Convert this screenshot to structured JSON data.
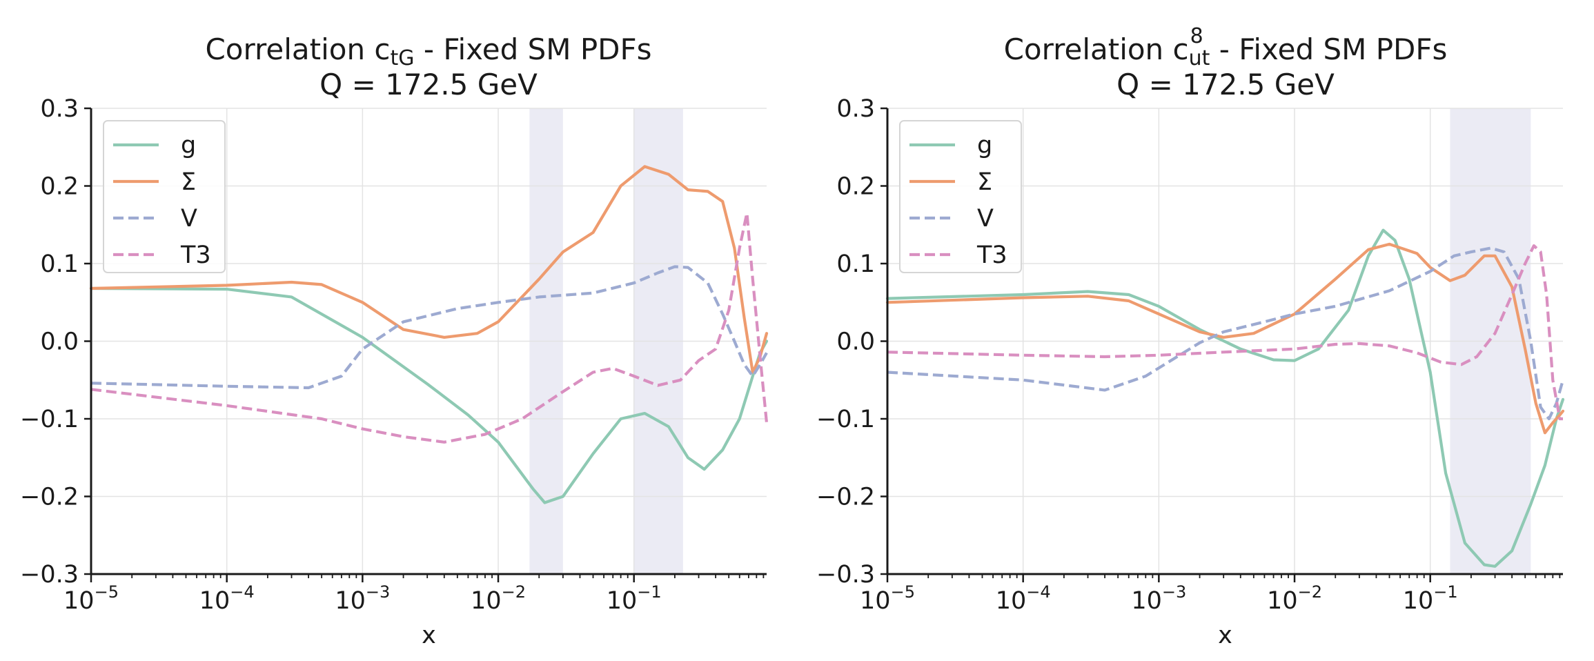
{
  "chart_data": [
    {
      "type": "line",
      "title_line1_pre": "Correlation c",
      "title_sub": "tG",
      "title_sup": "",
      "title_line1_post": " - Fixed SM PDFs",
      "title_line2": "Q = 172.5 GeV",
      "xlabel": "x",
      "xscale": "log",
      "xlim": [
        1e-05,
        0.95
      ],
      "ylim": [
        -0.3,
        0.3
      ],
      "xticks": [
        {
          "base": "10",
          "exp": "−5"
        },
        {
          "base": "10",
          "exp": "−4"
        },
        {
          "base": "10",
          "exp": "−3"
        },
        {
          "base": "10",
          "exp": "−2"
        },
        {
          "base": "10",
          "exp": "−1"
        }
      ],
      "yticks": [
        "0.3",
        "0.2",
        "0.1",
        "0.0",
        "−0.1",
        "−0.2",
        "−0.3"
      ],
      "grid": true,
      "legend_position": "upper-left",
      "shaded_regions": [
        [
          0.017,
          0.03
        ],
        [
          0.1,
          0.23
        ]
      ],
      "series": [
        {
          "name": "g",
          "color": "#8ec9b3",
          "style": "solid",
          "points": [
            [
              1e-05,
              0.068
            ],
            [
              0.0001,
              0.067
            ],
            [
              0.0003,
              0.057
            ],
            [
              0.001,
              0.005
            ],
            [
              0.003,
              -0.055
            ],
            [
              0.006,
              -0.095
            ],
            [
              0.01,
              -0.13
            ],
            [
              0.018,
              -0.19
            ],
            [
              0.022,
              -0.208
            ],
            [
              0.03,
              -0.2
            ],
            [
              0.05,
              -0.145
            ],
            [
              0.08,
              -0.1
            ],
            [
              0.12,
              -0.093
            ],
            [
              0.18,
              -0.11
            ],
            [
              0.25,
              -0.15
            ],
            [
              0.33,
              -0.165
            ],
            [
              0.45,
              -0.14
            ],
            [
              0.6,
              -0.1
            ],
            [
              0.75,
              -0.045
            ],
            [
              0.85,
              -0.015
            ],
            [
              0.95,
              0.0
            ]
          ]
        },
        {
          "name": "Σ",
          "color": "#ee9b6e",
          "style": "solid",
          "points": [
            [
              1e-05,
              0.068
            ],
            [
              0.0001,
              0.072
            ],
            [
              0.0003,
              0.076
            ],
            [
              0.0005,
              0.073
            ],
            [
              0.001,
              0.05
            ],
            [
              0.002,
              0.015
            ],
            [
              0.004,
              0.005
            ],
            [
              0.007,
              0.01
            ],
            [
              0.01,
              0.025
            ],
            [
              0.02,
              0.08
            ],
            [
              0.03,
              0.115
            ],
            [
              0.05,
              0.14
            ],
            [
              0.08,
              0.2
            ],
            [
              0.12,
              0.225
            ],
            [
              0.18,
              0.215
            ],
            [
              0.25,
              0.195
            ],
            [
              0.35,
              0.193
            ],
            [
              0.45,
              0.18
            ],
            [
              0.55,
              0.12
            ],
            [
              0.65,
              0.03
            ],
            [
              0.75,
              -0.04
            ],
            [
              0.85,
              -0.02
            ],
            [
              0.95,
              0.01
            ]
          ]
        },
        {
          "name": "V",
          "color": "#9daad1",
          "style": "dashed",
          "points": [
            [
              1e-05,
              -0.054
            ],
            [
              0.0001,
              -0.058
            ],
            [
              0.0004,
              -0.06
            ],
            [
              0.0007,
              -0.045
            ],
            [
              0.001,
              -0.01
            ],
            [
              0.002,
              0.025
            ],
            [
              0.005,
              0.042
            ],
            [
              0.01,
              0.05
            ],
            [
              0.02,
              0.057
            ],
            [
              0.05,
              0.062
            ],
            [
              0.1,
              0.075
            ],
            [
              0.15,
              0.088
            ],
            [
              0.2,
              0.096
            ],
            [
              0.25,
              0.095
            ],
            [
              0.35,
              0.075
            ],
            [
              0.45,
              0.035
            ],
            [
              0.55,
              0.0
            ],
            [
              0.65,
              -0.03
            ],
            [
              0.75,
              -0.045
            ],
            [
              0.85,
              -0.03
            ],
            [
              0.95,
              -0.015
            ]
          ]
        },
        {
          "name": "T3",
          "color": "#d98fc0",
          "style": "dashed",
          "points": [
            [
              1e-05,
              -0.062
            ],
            [
              0.0001,
              -0.083
            ],
            [
              0.0005,
              -0.1
            ],
            [
              0.001,
              -0.113
            ],
            [
              0.002,
              -0.123
            ],
            [
              0.004,
              -0.13
            ],
            [
              0.008,
              -0.12
            ],
            [
              0.015,
              -0.1
            ],
            [
              0.03,
              -0.065
            ],
            [
              0.05,
              -0.04
            ],
            [
              0.07,
              -0.035
            ],
            [
              0.1,
              -0.045
            ],
            [
              0.15,
              -0.057
            ],
            [
              0.22,
              -0.05
            ],
            [
              0.3,
              -0.025
            ],
            [
              0.4,
              -0.01
            ],
            [
              0.5,
              0.04
            ],
            [
              0.6,
              0.12
            ],
            [
              0.68,
              0.165
            ],
            [
              0.75,
              0.08
            ],
            [
              0.85,
              -0.02
            ],
            [
              0.95,
              -0.105
            ]
          ]
        }
      ]
    },
    {
      "type": "line",
      "title_line1_pre": "Correlation c",
      "title_sub": "ut",
      "title_sup": "8",
      "title_line1_post": " - Fixed SM PDFs",
      "title_line2": "Q = 172.5 GeV",
      "xlabel": "x",
      "xscale": "log",
      "xlim": [
        1e-05,
        0.95
      ],
      "ylim": [
        -0.3,
        0.3
      ],
      "xticks": [
        {
          "base": "10",
          "exp": "−5"
        },
        {
          "base": "10",
          "exp": "−4"
        },
        {
          "base": "10",
          "exp": "−3"
        },
        {
          "base": "10",
          "exp": "−2"
        },
        {
          "base": "10",
          "exp": "−1"
        }
      ],
      "yticks": [
        "0.3",
        "0.2",
        "0.1",
        "0.0",
        "−0.1",
        "−0.2",
        "−0.3"
      ],
      "grid": true,
      "legend_position": "upper-left",
      "shaded_regions": [
        [
          0.14,
          0.55
        ]
      ],
      "series": [
        {
          "name": "g",
          "color": "#8ec9b3",
          "style": "solid",
          "points": [
            [
              1e-05,
              0.055
            ],
            [
              0.0001,
              0.06
            ],
            [
              0.0003,
              0.064
            ],
            [
              0.0006,
              0.06
            ],
            [
              0.001,
              0.045
            ],
            [
              0.002,
              0.015
            ],
            [
              0.004,
              -0.01
            ],
            [
              0.007,
              -0.024
            ],
            [
              0.01,
              -0.025
            ],
            [
              0.015,
              -0.01
            ],
            [
              0.025,
              0.04
            ],
            [
              0.035,
              0.11
            ],
            [
              0.045,
              0.143
            ],
            [
              0.055,
              0.13
            ],
            [
              0.07,
              0.08
            ],
            [
              0.1,
              -0.04
            ],
            [
              0.13,
              -0.17
            ],
            [
              0.18,
              -0.26
            ],
            [
              0.25,
              -0.288
            ],
            [
              0.3,
              -0.29
            ],
            [
              0.4,
              -0.27
            ],
            [
              0.55,
              -0.21
            ],
            [
              0.7,
              -0.16
            ],
            [
              0.85,
              -0.1
            ],
            [
              0.95,
              -0.075
            ]
          ]
        },
        {
          "name": "Σ",
          "color": "#ee9b6e",
          "style": "solid",
          "points": [
            [
              1e-05,
              0.05
            ],
            [
              0.0001,
              0.056
            ],
            [
              0.0003,
              0.058
            ],
            [
              0.0006,
              0.052
            ],
            [
              0.001,
              0.035
            ],
            [
              0.002,
              0.012
            ],
            [
              0.003,
              0.005
            ],
            [
              0.005,
              0.01
            ],
            [
              0.01,
              0.035
            ],
            [
              0.02,
              0.08
            ],
            [
              0.035,
              0.118
            ],
            [
              0.05,
              0.125
            ],
            [
              0.08,
              0.113
            ],
            [
              0.1,
              0.095
            ],
            [
              0.14,
              0.078
            ],
            [
              0.18,
              0.085
            ],
            [
              0.25,
              0.11
            ],
            [
              0.3,
              0.11
            ],
            [
              0.4,
              0.07
            ],
            [
              0.5,
              -0.01
            ],
            [
              0.6,
              -0.08
            ],
            [
              0.7,
              -0.118
            ],
            [
              0.8,
              -0.105
            ],
            [
              0.9,
              -0.095
            ],
            [
              0.95,
              -0.09
            ]
          ]
        },
        {
          "name": "V",
          "color": "#9daad1",
          "style": "dashed",
          "points": [
            [
              1e-05,
              -0.04
            ],
            [
              0.0001,
              -0.05
            ],
            [
              0.0004,
              -0.063
            ],
            [
              0.0008,
              -0.045
            ],
            [
              0.002,
              -0.002
            ],
            [
              0.003,
              0.012
            ],
            [
              0.006,
              0.025
            ],
            [
              0.01,
              0.035
            ],
            [
              0.02,
              0.045
            ],
            [
              0.05,
              0.065
            ],
            [
              0.1,
              0.09
            ],
            [
              0.15,
              0.11
            ],
            [
              0.2,
              0.115
            ],
            [
              0.28,
              0.12
            ],
            [
              0.35,
              0.115
            ],
            [
              0.45,
              0.08
            ],
            [
              0.55,
              0.0
            ],
            [
              0.65,
              -0.085
            ],
            [
              0.75,
              -0.1
            ],
            [
              0.85,
              -0.08
            ],
            [
              0.95,
              -0.05
            ]
          ]
        },
        {
          "name": "T3",
          "color": "#d98fc0",
          "style": "dashed",
          "points": [
            [
              1e-05,
              -0.014
            ],
            [
              0.0001,
              -0.018
            ],
            [
              0.0004,
              -0.02
            ],
            [
              0.001,
              -0.018
            ],
            [
              0.003,
              -0.014
            ],
            [
              0.01,
              -0.01
            ],
            [
              0.02,
              -0.004
            ],
            [
              0.03,
              -0.003
            ],
            [
              0.05,
              -0.006
            ],
            [
              0.08,
              -0.015
            ],
            [
              0.12,
              -0.027
            ],
            [
              0.17,
              -0.03
            ],
            [
              0.22,
              -0.02
            ],
            [
              0.3,
              0.01
            ],
            [
              0.4,
              0.06
            ],
            [
              0.5,
              0.1
            ],
            [
              0.58,
              0.123
            ],
            [
              0.65,
              0.115
            ],
            [
              0.72,
              0.06
            ],
            [
              0.8,
              -0.05
            ],
            [
              0.9,
              -0.1
            ],
            [
              0.95,
              -0.1
            ]
          ]
        }
      ]
    }
  ]
}
